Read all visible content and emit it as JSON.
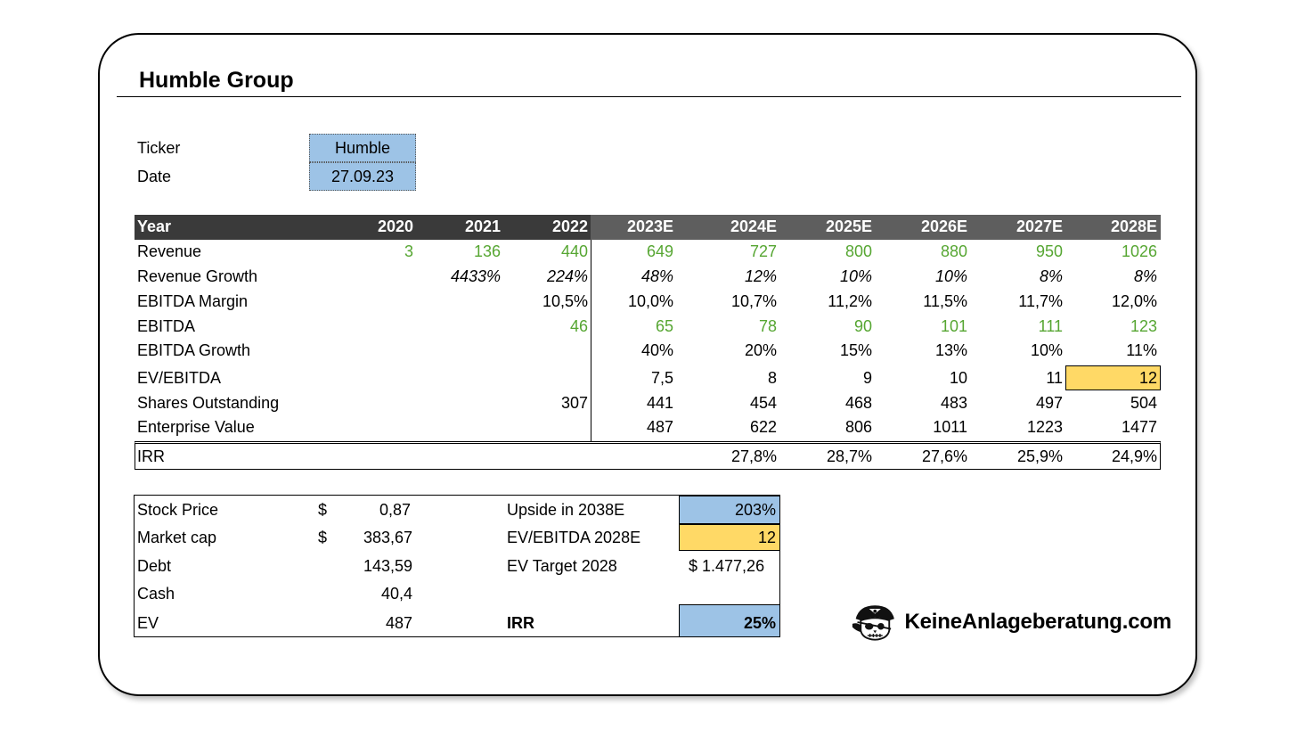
{
  "title": "Humble Group",
  "meta": {
    "ticker_label": "Ticker",
    "ticker_value": "Humble",
    "date_label": "Date",
    "date_value": "27.09.23"
  },
  "table": {
    "year_label": "Year",
    "years": [
      "2020",
      "2021",
      "2022",
      "2023E",
      "2024E",
      "2025E",
      "2026E",
      "2027E",
      "2028E"
    ],
    "rows": [
      {
        "label": "Revenue",
        "style": "green",
        "values": [
          "3",
          "136",
          "440",
          "649",
          "727",
          "800",
          "880",
          "950",
          "1026"
        ]
      },
      {
        "label": "Revenue Growth",
        "style": "italic",
        "values": [
          "",
          "4433%",
          "224%",
          "48%",
          "12%",
          "10%",
          "10%",
          "8%",
          "8%"
        ]
      },
      {
        "label": "EBITDA Margin",
        "style": "plain",
        "values": [
          "",
          "",
          "10,5%",
          "10,0%",
          "10,7%",
          "11,2%",
          "11,5%",
          "11,7%",
          "12,0%"
        ]
      },
      {
        "label": "EBITDA",
        "style": "green",
        "values": [
          "",
          "",
          "46",
          "65",
          "78",
          "90",
          "101",
          "111",
          "123"
        ]
      },
      {
        "label": "EBITDA Growth",
        "style": "plain",
        "values": [
          "",
          "",
          "",
          "40%",
          "20%",
          "15%",
          "13%",
          "10%",
          "11%"
        ]
      },
      {
        "label": "EV/EBITDA",
        "style": "plain",
        "values": [
          "",
          "",
          "",
          "7,5",
          "8",
          "9",
          "10",
          "11",
          "12"
        ]
      },
      {
        "label": "Shares Outstanding",
        "style": "plain",
        "values": [
          "",
          "",
          "307",
          "441",
          "454",
          "468",
          "483",
          "497",
          "504"
        ]
      },
      {
        "label": "Enterprise Value",
        "style": "plain",
        "values": [
          "",
          "",
          "",
          "487",
          "622",
          "806",
          "1011",
          "1223",
          "1477"
        ]
      }
    ],
    "irr_label": "IRR",
    "irr_values": [
      "",
      "",
      "",
      "",
      "27,8%",
      "28,7%",
      "27,6%",
      "25,9%",
      "24,9%"
    ]
  },
  "summary": {
    "stock_price_label": "Stock Price",
    "stock_price_currency": "$",
    "stock_price_value": "0,87",
    "market_cap_label": "Market cap",
    "market_cap_currency": "$",
    "market_cap_value": "383,67",
    "debt_label": "Debt",
    "debt_value": "143,59",
    "cash_label": "Cash",
    "cash_value": "40,4",
    "ev_label": "EV",
    "ev_value": "487",
    "upside_label": "Upside in 2038E",
    "upside_value": "203%",
    "ev_ebitda_label": "EV/EBITDA 2028E",
    "ev_ebitda_value": "12",
    "ev_target_label": "EV Target 2028",
    "ev_target_value": "$ 1.477,26",
    "irr_label": "IRR",
    "irr_value": "25%"
  },
  "brand": {
    "name": "KeineAnlageberatung.com",
    "icon": "pirate-skull-icon"
  },
  "colors": {
    "green": "#56a632",
    "blue": "#9dc3e6",
    "yellow": "#ffd966",
    "header_dark": "#3a3a3a",
    "header_mid": "#5e5e5e"
  }
}
